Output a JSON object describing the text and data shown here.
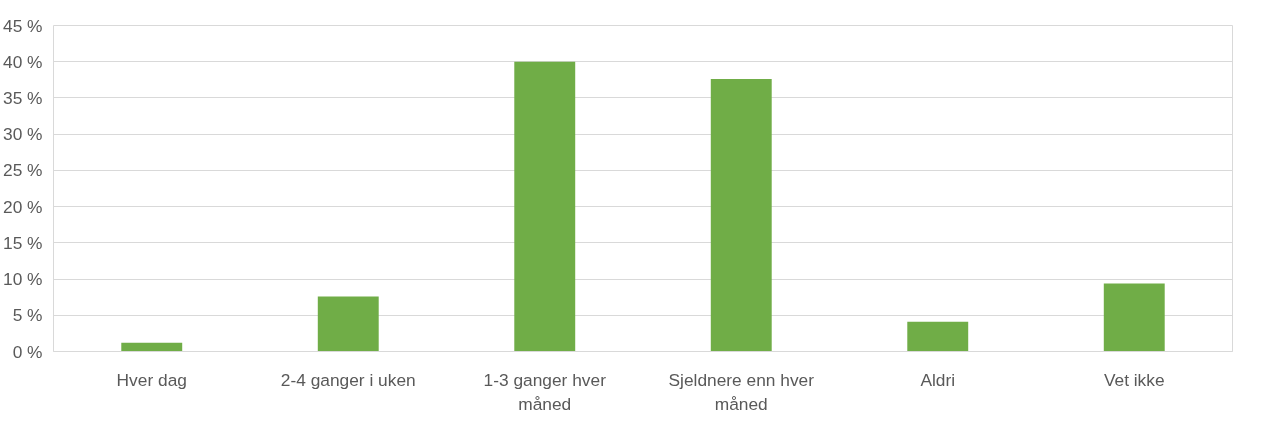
{
  "chart_data": {
    "type": "bar",
    "categories": [
      "Hver dag",
      "2-4 ganger i uken",
      "1-3 ganger hver måned",
      "Sjeldnere enn hver måned",
      "Aldri",
      "Vet ikke"
    ],
    "values": [
      1.2,
      7.6,
      40,
      37.6,
      4.1,
      9.4
    ],
    "color": "#70ad47",
    "ylim": [
      0,
      45
    ],
    "yticks": [
      {
        "value": 0,
        "label": "0 %"
      },
      {
        "value": 5,
        "label": "5 %"
      },
      {
        "value": 10,
        "label": "10 %"
      },
      {
        "value": 15,
        "label": "15 %"
      },
      {
        "value": 20,
        "label": "20 %"
      },
      {
        "value": 25,
        "label": "25 %"
      },
      {
        "value": 30,
        "label": "30 %"
      },
      {
        "value": 35,
        "label": "35 %"
      },
      {
        "value": 40,
        "label": "40 %"
      },
      {
        "value": 45,
        "label": "45 %"
      }
    ],
    "grid": "y"
  }
}
